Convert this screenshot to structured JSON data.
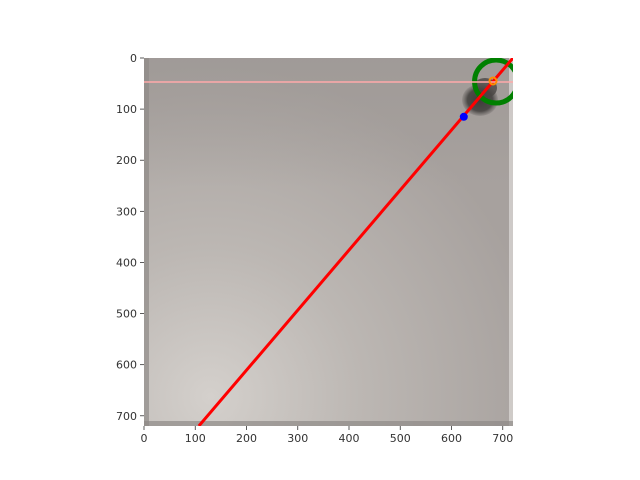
{
  "chart_data": {
    "type": "scatter",
    "title": "",
    "xlabel": "",
    "ylabel": "",
    "xlim": [
      0,
      720
    ],
    "ylim": [
      720,
      0
    ],
    "y_inverted": true,
    "x_ticks": [
      0,
      100,
      200,
      300,
      400,
      500,
      600,
      700
    ],
    "y_ticks": [
      0,
      100,
      200,
      300,
      400,
      500,
      600,
      700
    ],
    "grid": false,
    "background": "grayscale camera image of a flat surface with a dark object near the top-right corner",
    "lines": [
      {
        "color": "#ff0000",
        "points": [
          [
            107,
            720
          ],
          [
            720,
            0
          ]
        ]
      },
      {
        "color": "#ffaaaa",
        "points": [
          [
            0,
            47
          ],
          [
            720,
            47
          ]
        ]
      }
    ],
    "arcs": [
      {
        "color": "#008000",
        "center": [
          687,
          46
        ],
        "radius": 42
      }
    ],
    "markers": [
      {
        "color": "#0000ff",
        "x": 624,
        "y": 115,
        "shape": "circle"
      },
      {
        "color": "#ff8c00",
        "x": 681,
        "y": 45,
        "shape": "ring"
      }
    ]
  }
}
